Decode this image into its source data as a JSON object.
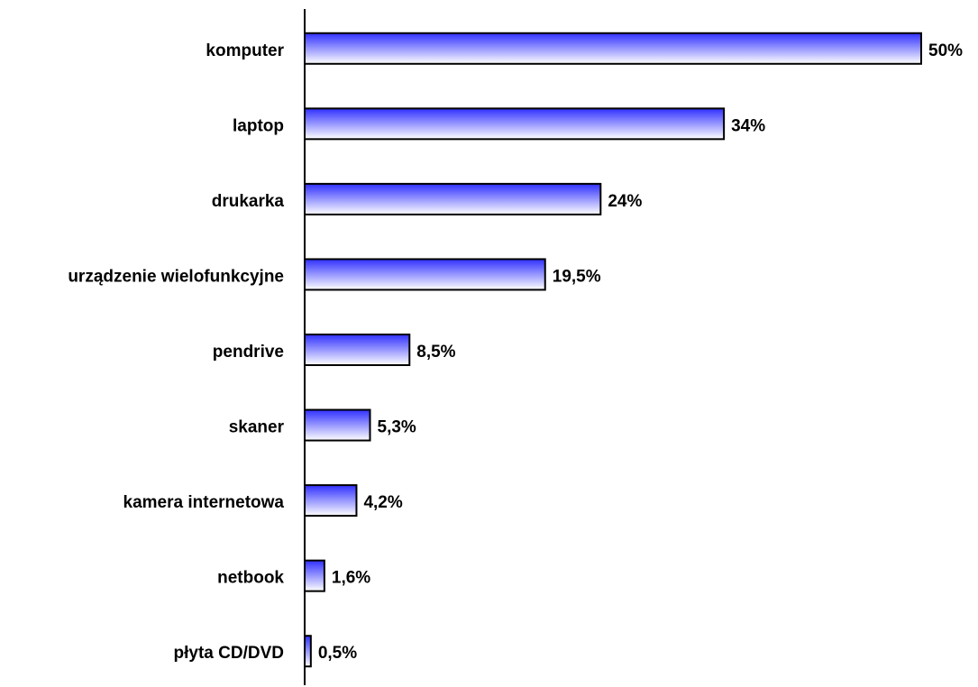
{
  "chart_data": {
    "type": "hbar",
    "categories": [
      "komputer",
      "laptop",
      "drukarka",
      "urządzenie wielofunkcyjne",
      "pendrive",
      "skaner",
      "kamera internetowa",
      "netbook",
      "płyta CD/DVD"
    ],
    "values": [
      50,
      34,
      24,
      19.5,
      8.5,
      5.3,
      4.2,
      1.6,
      0.5
    ],
    "value_labels": [
      "50%",
      "34%",
      "24%",
      "19,5%",
      "8,5%",
      "5,3%",
      "4,2%",
      "1,6%",
      "0,5%"
    ],
    "color": "#3030ff"
  }
}
